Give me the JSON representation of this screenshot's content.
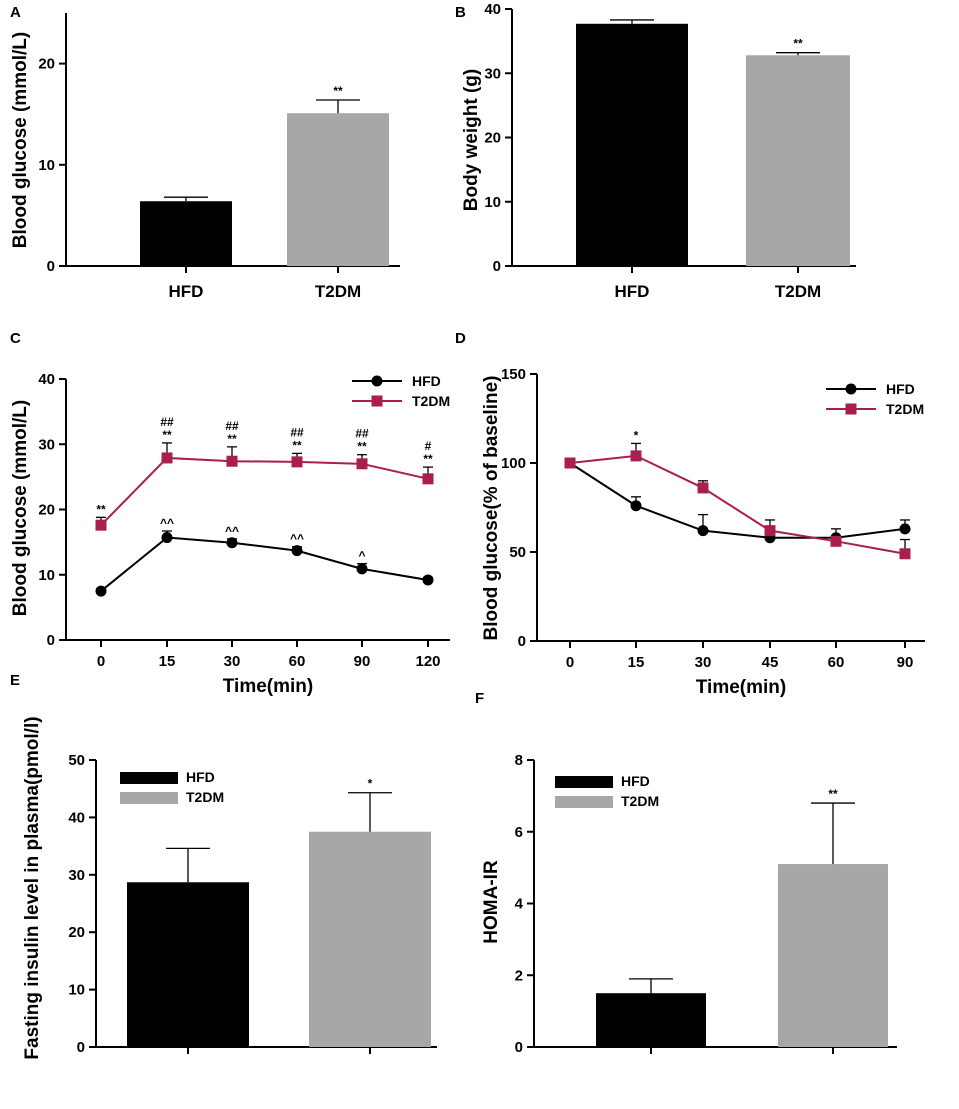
{
  "colors": {
    "hfd": "#000000",
    "t2dm_bar": "#a7a7aa",
    "t2dm_line": "#a81e4e"
  },
  "chart_data": [
    {
      "panel": "A",
      "type": "bar",
      "categories": [
        "HFD",
        "T2DM"
      ],
      "values": [
        6.4,
        15.1
      ],
      "errors": [
        0.4,
        1.3
      ],
      "significance": [
        "",
        "**"
      ],
      "ylabel": "Blood glucose (mmol/L)",
      "ylim": [
        0,
        25
      ],
      "yticks": [
        "0",
        "10",
        "20"
      ]
    },
    {
      "panel": "B",
      "type": "bar",
      "categories": [
        "HFD",
        "T2DM"
      ],
      "values": [
        37.7,
        32.8
      ],
      "errors": [
        0.6,
        0.4
      ],
      "significance": [
        "",
        "**"
      ],
      "ylabel": "Body weight (g)",
      "ylim": [
        0,
        40
      ],
      "yticks": [
        "0",
        "10",
        "20",
        "30",
        "40"
      ]
    },
    {
      "panel": "C",
      "type": "line",
      "x": [
        "0",
        "15",
        "30",
        "60",
        "90",
        "120"
      ],
      "series": [
        {
          "name": "HFD",
          "values": [
            7.5,
            15.7,
            14.9,
            13.7,
            10.9,
            9.2
          ],
          "errors": [
            0.3,
            1.0,
            0.6,
            0.6,
            0.8,
            0.4
          ],
          "annotations": [
            "",
            "^^",
            "^^",
            "^^",
            "^",
            ""
          ]
        },
        {
          "name": "T2DM",
          "values": [
            17.6,
            27.9,
            27.4,
            27.3,
            27.0,
            24.7
          ],
          "errors": [
            1.2,
            2.3,
            2.2,
            1.3,
            1.4,
            1.8
          ],
          "annotations": [
            "**",
            "**",
            "**",
            "**",
            "**",
            "**"
          ],
          "annotations2": [
            "",
            "##",
            "##",
            "##",
            "##",
            "#"
          ]
        }
      ],
      "xlabel": "Time(min)",
      "ylabel": "Blood glucose (mmol/L)",
      "ylim": [
        0,
        40
      ],
      "yticks": [
        "0",
        "10",
        "20",
        "30",
        "40"
      ],
      "legend": "top-right"
    },
    {
      "panel": "D",
      "type": "line",
      "x": [
        "0",
        "15",
        "30",
        "45",
        "60",
        "90"
      ],
      "series": [
        {
          "name": "HFD",
          "values": [
            100,
            76,
            62,
            58,
            58,
            63
          ],
          "errors": [
            2,
            5,
            9,
            3,
            5,
            5
          ],
          "annotations": [
            "",
            "",
            "",
            "",
            "",
            ""
          ]
        },
        {
          "name": "T2DM",
          "values": [
            100,
            104,
            86,
            62,
            56,
            49
          ],
          "errors": [
            2,
            7,
            4,
            6,
            2,
            8
          ],
          "annotations": [
            "",
            "*",
            "",
            "",
            "",
            ""
          ]
        }
      ],
      "xlabel": "Time(min)",
      "ylabel": "Blood glucose(% of baseline)",
      "ylim": [
        0,
        150
      ],
      "yticks": [
        "0",
        "50",
        "100",
        "150"
      ],
      "legend": "top-right"
    },
    {
      "panel": "E",
      "type": "bar",
      "categories": [
        "HFD",
        "T2DM"
      ],
      "values": [
        28.7,
        37.5
      ],
      "errors": [
        5.9,
        6.8
      ],
      "significance": [
        "",
        "*"
      ],
      "ylabel": "Fasting insulin level in plasma(pmol/l)",
      "ylim": [
        0,
        50
      ],
      "yticks": [
        "0",
        "10",
        "20",
        "30",
        "40",
        "50"
      ],
      "legend_entries": [
        "HFD",
        "T2DM"
      ]
    },
    {
      "panel": "F",
      "type": "bar",
      "categories": [
        "HFD",
        "T2DM"
      ],
      "values": [
        1.5,
        5.1
      ],
      "errors": [
        0.4,
        1.7
      ],
      "significance": [
        "",
        "**"
      ],
      "ylabel": "HOMA-IR",
      "ylim": [
        0,
        8
      ],
      "yticks": [
        "0",
        "2",
        "4",
        "6",
        "8"
      ],
      "legend_entries": [
        "HFD",
        "T2DM"
      ]
    }
  ]
}
